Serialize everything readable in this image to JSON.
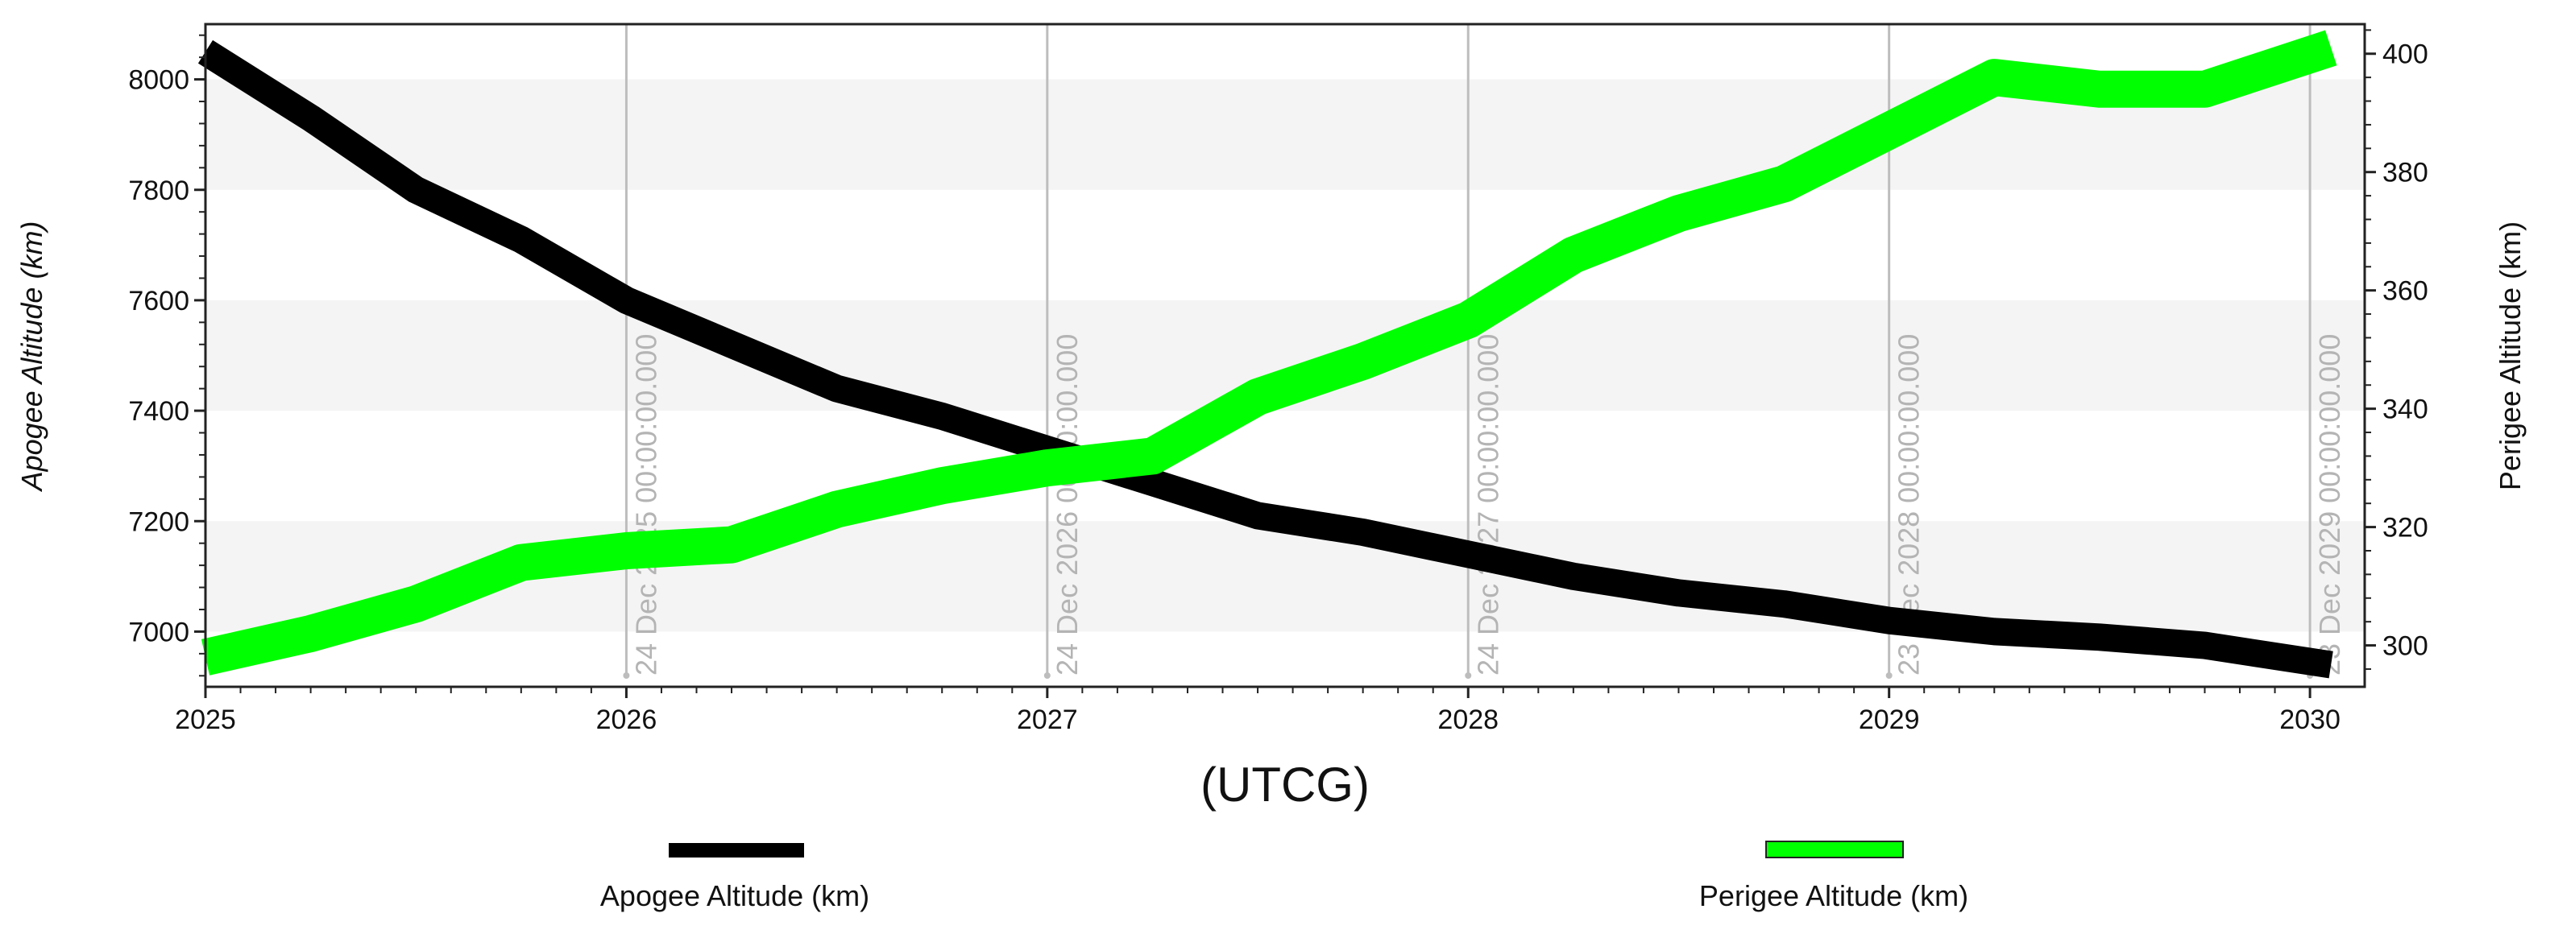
{
  "chart_data": {
    "type": "line",
    "title": "",
    "xlabel": "(UTCG)",
    "x_ticks": [
      "2025",
      "2026",
      "2027",
      "2028",
      "2029",
      "2030"
    ],
    "xlim": [
      2025.0,
      2030.13
    ],
    "ylabel_left": "Apogee Altitude (km)",
    "ylim_left": [
      6900,
      8100
    ],
    "yticks_left": [
      7000,
      7200,
      7400,
      7600,
      7800,
      8000
    ],
    "ylabel_right": "Perigee Altitude (km)",
    "ylim_right": [
      293,
      405
    ],
    "yticks_right": [
      300,
      320,
      340,
      360,
      380,
      400
    ],
    "grid": "alternating horizontal bands",
    "legend_position": "bottom",
    "markers": [
      {
        "x": 2026.0,
        "label": "24 Dec 2025 00:00:00.000"
      },
      {
        "x": 2027.0,
        "label": "24 Dec 2026 00:00:00.000"
      },
      {
        "x": 2028.0,
        "label": "24 Dec 2027 00:00:00.000"
      },
      {
        "x": 2029.0,
        "label": "23 Dec 2028 00:00:00.000"
      },
      {
        "x": 2030.0,
        "label": "23 Dec 2029 00:00:00.000"
      }
    ],
    "series": [
      {
        "name": "Apogee Altitude (km)",
        "axis": "left",
        "color": "#000000",
        "x": [
          2025.0,
          2025.25,
          2025.5,
          2025.75,
          2026.0,
          2026.25,
          2026.5,
          2026.75,
          2027.0,
          2027.25,
          2027.5,
          2027.75,
          2028.0,
          2028.25,
          2028.5,
          2028.75,
          2029.0,
          2029.25,
          2029.5,
          2029.75,
          2030.05
        ],
        "y": [
          8050,
          7930,
          7800,
          7710,
          7600,
          7520,
          7440,
          7390,
          7330,
          7270,
          7210,
          7180,
          7140,
          7100,
          7070,
          7050,
          7020,
          7000,
          6990,
          6975,
          6940
        ]
      },
      {
        "name": "Perigee Altitude (km)",
        "axis": "right",
        "color": "#00ff00",
        "x": [
          2025.0,
          2025.25,
          2025.5,
          2025.75,
          2026.0,
          2026.25,
          2026.5,
          2026.75,
          2027.0,
          2027.25,
          2027.5,
          2027.75,
          2028.0,
          2028.25,
          2028.5,
          2028.75,
          2029.0,
          2029.25,
          2029.5,
          2029.75,
          2030.05
        ],
        "y": [
          298,
          302,
          307,
          314,
          316,
          317,
          323,
          327,
          330,
          332,
          342,
          348,
          355,
          366,
          373,
          378,
          387,
          396,
          394,
          394,
          401
        ]
      }
    ]
  }
}
